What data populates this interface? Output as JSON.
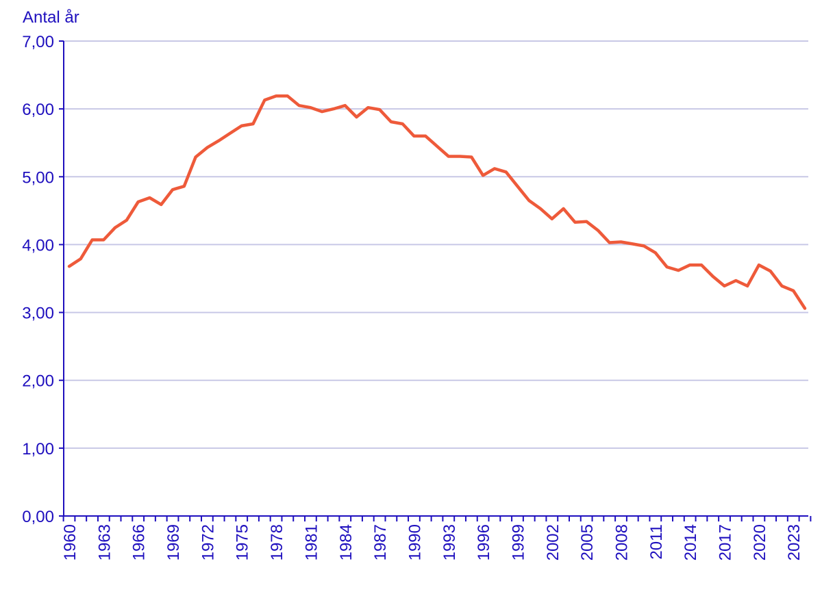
{
  "chart_data": {
    "type": "line",
    "ylabel": "Antal år",
    "xlabel": "",
    "ylim": [
      0,
      7
    ],
    "xlim": [
      1960,
      2024
    ],
    "yticks": [
      "0,00",
      "1,00",
      "2,00",
      "3,00",
      "4,00",
      "5,00",
      "6,00",
      "7,00"
    ],
    "xtick_labels": [
      "1960",
      "1963",
      "1966",
      "1969",
      "1972",
      "1975",
      "1978",
      "1981",
      "1984",
      "1987",
      "1990",
      "1993",
      "1996",
      "1999",
      "2002",
      "2005",
      "2008",
      "2011",
      "2014",
      "2017",
      "2020",
      "2023"
    ],
    "grid": true,
    "legend": "none",
    "colors": {
      "line": "#ee5a3a",
      "axis": "#1e0fbe",
      "text": "#1e0fbe",
      "grid": "#c8c8e6"
    },
    "series": [
      {
        "x": [
          1960,
          1961,
          1962,
          1963,
          1964,
          1965,
          1966,
          1967,
          1968,
          1969,
          1970,
          1971,
          1972,
          1973,
          1974,
          1975,
          1976,
          1977,
          1978,
          1979,
          1980,
          1981,
          1982,
          1983,
          1984,
          1985,
          1986,
          1987,
          1988,
          1989,
          1990,
          1991,
          1992,
          1993,
          1994,
          1995,
          1996,
          1997,
          1998,
          1999,
          2000,
          2001,
          2002,
          2003,
          2004,
          2005,
          2006,
          2007,
          2008,
          2009,
          2010,
          2011,
          2012,
          2013,
          2014,
          2015,
          2016,
          2017,
          2018,
          2019,
          2020,
          2021,
          2022,
          2023,
          2024
        ],
        "values": [
          3.68,
          3.79,
          4.07,
          4.07,
          4.25,
          4.36,
          4.63,
          4.69,
          4.59,
          4.81,
          4.86,
          5.29,
          5.43,
          5.53,
          5.64,
          5.75,
          5.78,
          6.13,
          6.19,
          6.19,
          6.05,
          6.02,
          5.96,
          6.0,
          6.05,
          5.88,
          6.02,
          5.99,
          5.81,
          5.78,
          5.6,
          5.6,
          5.45,
          5.3,
          5.3,
          5.29,
          5.02,
          5.12,
          5.07,
          4.86,
          4.65,
          4.53,
          4.38,
          4.53,
          4.33,
          4.34,
          4.21,
          4.03,
          4.04,
          4.01,
          3.98,
          3.88,
          3.67,
          3.62,
          3.7,
          3.7,
          3.53,
          3.39,
          3.47,
          3.39,
          3.7,
          3.61,
          3.39,
          3.32,
          3.06
        ]
      }
    ]
  }
}
